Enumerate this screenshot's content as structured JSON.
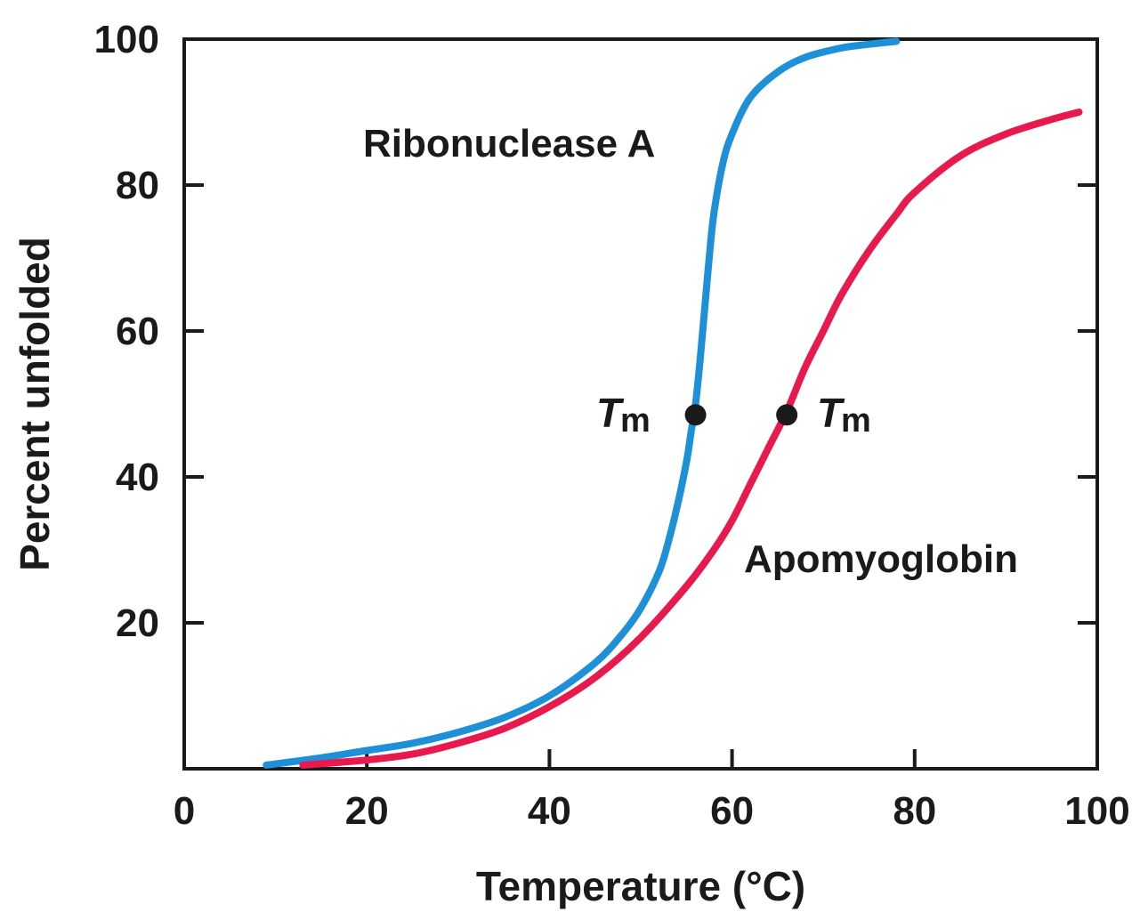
{
  "chart_data": {
    "type": "line",
    "xlabel": "Temperature (°C)",
    "ylabel": "Percent unfolded",
    "xlim": [
      0,
      100
    ],
    "ylim": [
      0,
      100
    ],
    "x_ticks": [
      "0",
      "20",
      "40",
      "60",
      "80",
      "100"
    ],
    "y_ticks": [
      "20",
      "40",
      "60",
      "80",
      "100"
    ],
    "grid": false,
    "series": [
      {
        "name": "Ribonuclease A",
        "color": "#1e90d8",
        "x": [
          9,
          15,
          20,
          25,
          30,
          35,
          40,
          45,
          48,
          50,
          52,
          53,
          54,
          55,
          55.5,
          56,
          56.5,
          57,
          57.5,
          58,
          59,
          60,
          62,
          65,
          68,
          72,
          75,
          78
        ],
        "y": [
          0.5,
          1.5,
          2.5,
          3.5,
          5,
          7,
          10,
          14.5,
          18.5,
          22,
          27,
          31,
          36,
          42,
          46,
          50,
          56,
          63,
          70,
          76,
          83,
          87,
          92,
          95.5,
          97.5,
          98.8,
          99.3,
          99.7
        ],
        "tm": {
          "x": 56,
          "y": 48.5
        },
        "label": "Ribonuclease A"
      },
      {
        "name": "Apomyoglobin",
        "color": "#e8194c",
        "x": [
          13,
          20,
          25,
          30,
          35,
          40,
          45,
          50,
          55,
          58,
          60,
          62,
          64,
          66,
          68,
          70,
          72,
          75,
          78,
          80,
          85,
          90,
          95,
          98
        ],
        "y": [
          0.5,
          1.2,
          2,
          3.5,
          5.5,
          8.5,
          12.5,
          18,
          25,
          30,
          34,
          39,
          44,
          49,
          55,
          60,
          65,
          71,
          76,
          79,
          84,
          87,
          89,
          90
        ],
        "tm": {
          "x": 66,
          "y": 48.5
        },
        "label": "Apomyoglobin"
      }
    ],
    "annotations": {
      "tm_main": "T",
      "tm_sub": "m"
    }
  }
}
